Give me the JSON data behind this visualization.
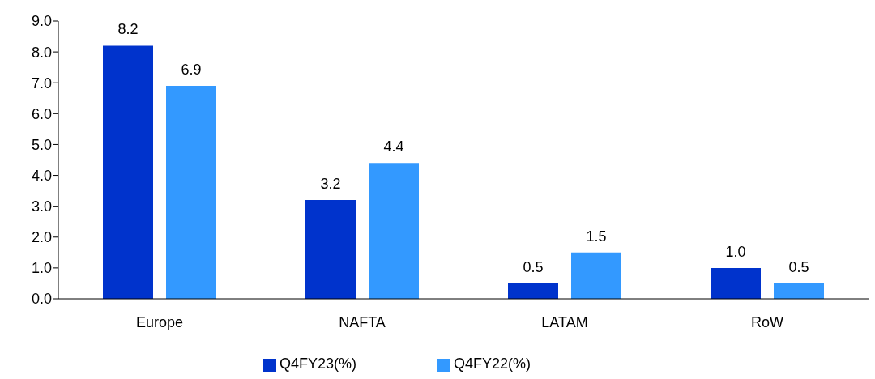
{
  "chart_data": {
    "type": "bar",
    "categories": [
      "Europe",
      "NAFTA",
      "LATAM",
      "RoW"
    ],
    "series": [
      {
        "name": "Q4FY23(%)",
        "color": "#0033cc",
        "values": [
          8.2,
          3.2,
          0.5,
          1.0
        ],
        "value_labels": [
          "8.2",
          "3.2",
          "0.5",
          "1.0"
        ]
      },
      {
        "name": "Q4FY22(%)",
        "color": "#3399ff",
        "values": [
          6.9,
          4.4,
          1.5,
          0.5
        ],
        "value_labels": [
          "6.9",
          "4.4",
          "1.5",
          "0.5"
        ]
      }
    ],
    "ylim": [
      0,
      9
    ],
    "yticks": [
      {
        "value": 0,
        "label": "0.0"
      },
      {
        "value": 1,
        "label": "1.0"
      },
      {
        "value": 2,
        "label": "2.0"
      },
      {
        "value": 3,
        "label": "3.0"
      },
      {
        "value": 4,
        "label": "4.0"
      },
      {
        "value": 5,
        "label": "5.0"
      },
      {
        "value": 6,
        "label": "6.0"
      },
      {
        "value": 7,
        "label": "7.0"
      },
      {
        "value": 8,
        "label": "8.0"
      },
      {
        "value": 9,
        "label": "9.0"
      }
    ],
    "grid": false,
    "legend": "bottom"
  }
}
